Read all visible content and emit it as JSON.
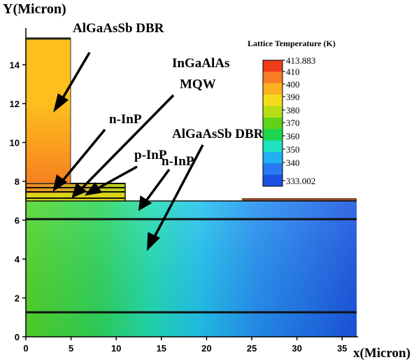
{
  "axes": {
    "ylabel": "Y(Micron)",
    "xlabel": "x(Micron)",
    "xticks": [
      "0",
      "5",
      "10",
      "15",
      "20",
      "25",
      "30",
      "35"
    ],
    "yticks": [
      "0",
      "2",
      "4",
      "6",
      "8",
      "10",
      "12",
      "14"
    ]
  },
  "annotations": {
    "top_dbr": "AlGaAsSb DBR",
    "mqw_line1": "InGaAlAs",
    "mqw_line2": "MQW",
    "n_inp_top": "n-InP",
    "p_inp": "p-InP",
    "n_inp_mid": "n-InP",
    "bottom_dbr": "AlGaAsSb DBR"
  },
  "colorbar": {
    "title": "Lattice Temperature (K)",
    "ticks": [
      "413.883",
      "410",
      "400",
      "390",
      "380",
      "370",
      "360",
      "350",
      "340",
      "333.002"
    ],
    "colors": [
      "#ef3a1c",
      "#f77d24",
      "#f9b11f",
      "#f3dc1c",
      "#b6de18",
      "#5fd317",
      "#1ed64d",
      "#1ee1c0",
      "#21b1f3",
      "#2879f2",
      "#1b4fe0"
    ]
  },
  "colors": {
    "device_hot": "#ffb31e",
    "device_edge": "#f07828",
    "substrate_hot": "#46d32c",
    "substrate_cool": "#1e57e6",
    "contact": "#8a4a2a"
  }
}
